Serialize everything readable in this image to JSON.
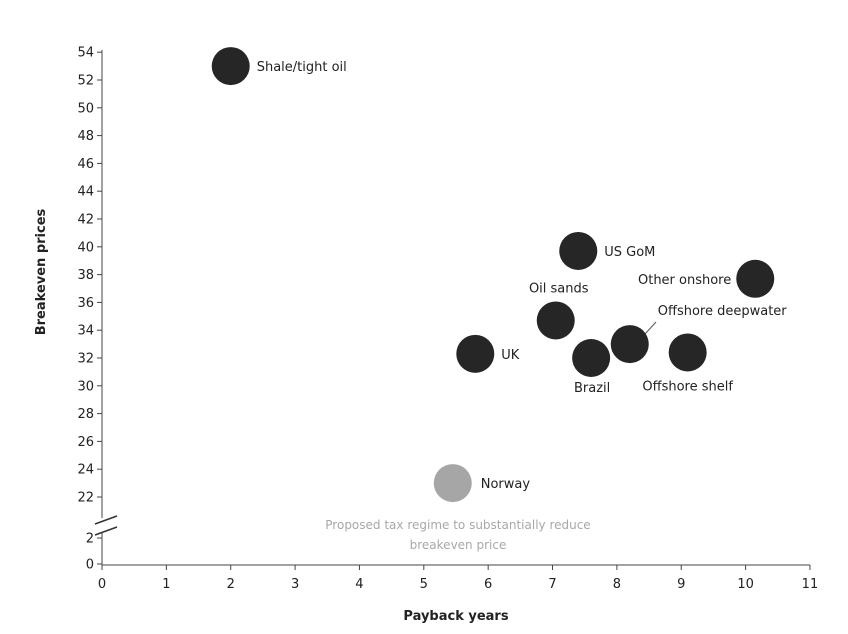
{
  "chart_data": {
    "type": "scatter",
    "xlabel": "Payback years",
    "ylabel": "Breakeven prices",
    "xlim": [
      0,
      11
    ],
    "ylim": [
      20,
      54
    ],
    "x_ticks": [
      "0",
      "1",
      "2",
      "3",
      "4",
      "5",
      "6",
      "7",
      "8",
      "9",
      "10",
      "11"
    ],
    "y_ticks": [
      "22",
      "24",
      "26",
      "28",
      "30",
      "32",
      "34",
      "36",
      "38",
      "40",
      "42",
      "44",
      "46",
      "48",
      "50",
      "52",
      "54"
    ],
    "y_axis_break": {
      "below": [
        "0",
        "2"
      ]
    },
    "grid": false,
    "points": [
      {
        "label": "Shale/tight oil",
        "x": 2.0,
        "y": 53.0,
        "color": "#262626"
      },
      {
        "label": "US GoM",
        "x": 7.4,
        "y": 39.7,
        "color": "#262626"
      },
      {
        "label": "Other onshore",
        "x": 10.15,
        "y": 37.7,
        "color": "#262626"
      },
      {
        "label": "Oil sands",
        "x": 7.05,
        "y": 34.7,
        "color": "#262626"
      },
      {
        "label": "Offshore deepwater",
        "x": 8.2,
        "y": 33.0,
        "color": "#262626"
      },
      {
        "label": "UK",
        "x": 5.8,
        "y": 32.3,
        "color": "#262626"
      },
      {
        "label": "Brazil",
        "x": 7.6,
        "y": 32.0,
        "color": "#262626"
      },
      {
        "label": "Offshore shelf",
        "x": 9.1,
        "y": 32.4,
        "color": "#262626"
      },
      {
        "label": "Norway",
        "x": 5.45,
        "y": 23.0,
        "color": "#a6a6a6"
      }
    ],
    "annotations": [
      "Proposed tax regime to substantially reduce",
      "breakeven price"
    ]
  }
}
